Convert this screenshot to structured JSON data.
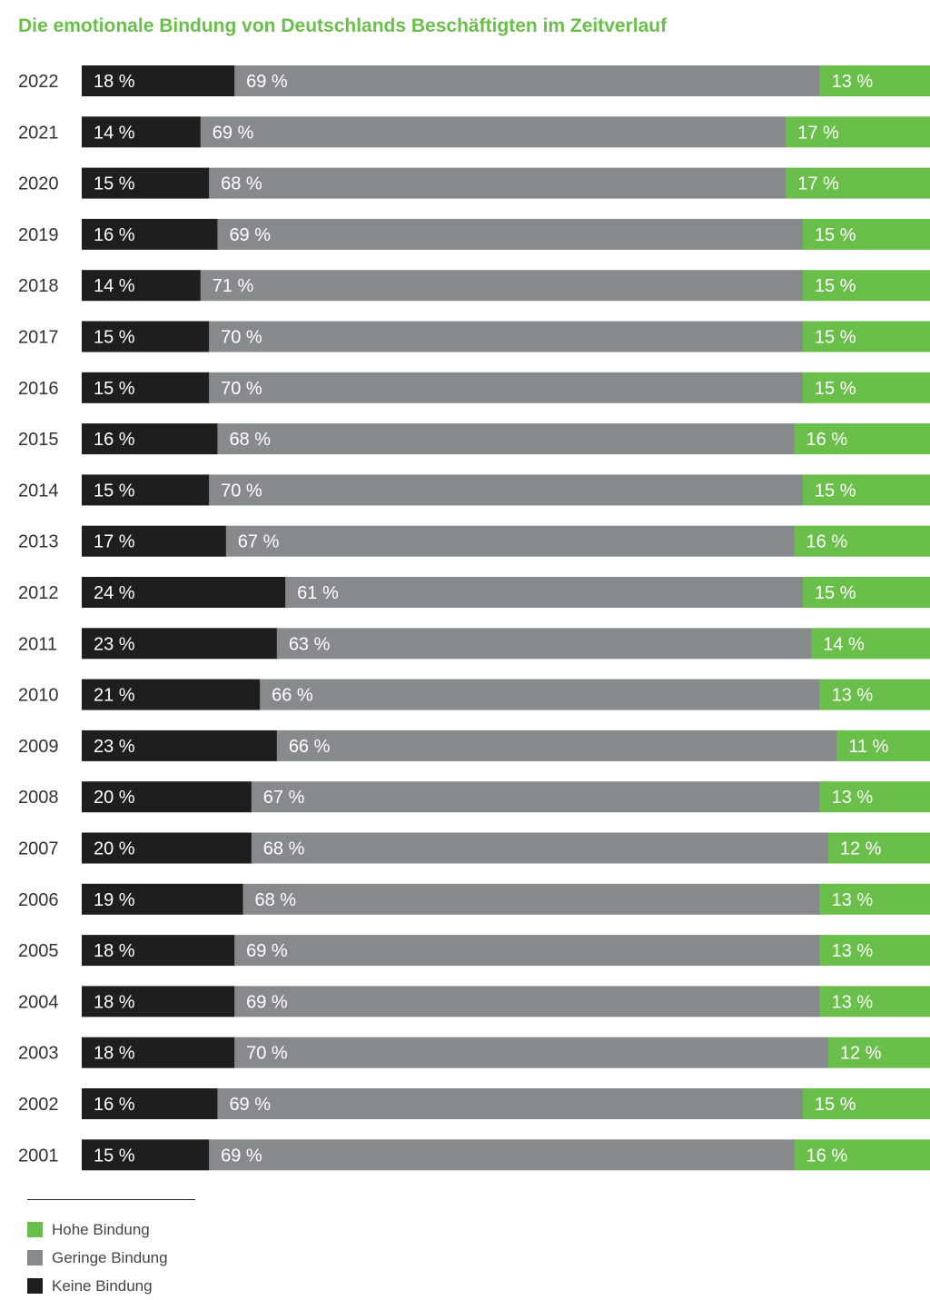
{
  "title": "Die emotionale Bindung von Deutschlands Beschäftigten im Zeitverlauf",
  "colors": {
    "keine": "#1e1e1e",
    "geringe": "#878a8c",
    "hohe": "#6abf4b",
    "title": "#6abf4b"
  },
  "legend": [
    {
      "label": "Hohe Bindung",
      "color": "#6abf4b"
    },
    {
      "label": "Geringe Bindung",
      "color": "#878a8c"
    },
    {
      "label": "Keine Bindung",
      "color": "#1e1e1e"
    }
  ],
  "chart_data": {
    "type": "bar",
    "orientation": "horizontal",
    "stacked": true,
    "unit": "%",
    "categories": [
      "2022",
      "2021",
      "2020",
      "2019",
      "2018",
      "2017",
      "2016",
      "2015",
      "2014",
      "2013",
      "2012",
      "2011",
      "2010",
      "2009",
      "2008",
      "2007",
      "2006",
      "2005",
      "2004",
      "2003",
      "2002",
      "2001"
    ],
    "series": [
      {
        "name": "Keine Bindung",
        "values": [
          18,
          14,
          15,
          16,
          14,
          15,
          15,
          16,
          15,
          17,
          24,
          23,
          21,
          23,
          20,
          20,
          19,
          18,
          18,
          18,
          16,
          15
        ]
      },
      {
        "name": "Geringe Bindung",
        "values": [
          69,
          69,
          68,
          69,
          71,
          70,
          70,
          68,
          70,
          67,
          61,
          63,
          66,
          66,
          67,
          68,
          68,
          69,
          69,
          70,
          69,
          69
        ]
      },
      {
        "name": "Hohe Bindung",
        "values": [
          13,
          17,
          17,
          15,
          15,
          15,
          15,
          16,
          15,
          16,
          15,
          14,
          13,
          11,
          13,
          12,
          13,
          13,
          13,
          12,
          15,
          16
        ]
      }
    ],
    "xlim": [
      0,
      100
    ],
    "legend_position": "bottom-left",
    "grid": false
  }
}
